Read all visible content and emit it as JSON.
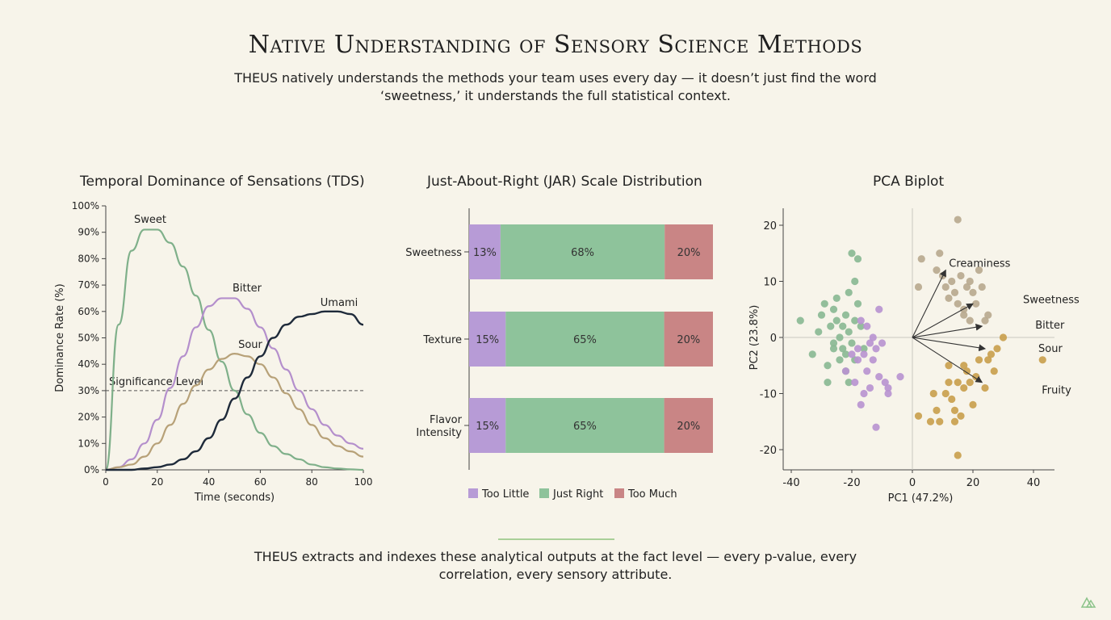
{
  "header": {
    "title": "Native Understanding of Sensory Science Methods",
    "subtitle": "THEUS natively understands the methods your team uses every day — it doesn’t just find the word ‘sweetness,’ it understands the full statistical context."
  },
  "footer": {
    "text": "THEUS extracts and indexes these analytical outputs at the fact level — every p-value, every correlation, every sensory attribute."
  },
  "colors": {
    "background": "#f7f4ea",
    "sweet": "#7fb08a",
    "bitter": "#b48fcc",
    "sour": "#b7a178",
    "umami": "#1e2a3a",
    "too_little": "#b79bd6",
    "just_right": "#8ec39b",
    "too_much": "#c98585",
    "accent": "#a9cf98"
  },
  "chart_data": [
    {
      "type": "line",
      "title": "Temporal Dominance of Sensations (TDS)",
      "xlabel": "Time (seconds)",
      "ylabel": "Dominance Rate (%)",
      "xlim": [
        0,
        100
      ],
      "ylim": [
        0,
        100
      ],
      "xticks": [
        "0",
        "20",
        "40",
        "60",
        "80",
        "100"
      ],
      "yticks": [
        "0%",
        "10%",
        "20%",
        "30%",
        "40%",
        "50%",
        "60%",
        "70%",
        "80%",
        "90%",
        "100%"
      ],
      "x": [
        0,
        5,
        10,
        15,
        20,
        25,
        30,
        35,
        40,
        45,
        50,
        55,
        60,
        65,
        70,
        75,
        80,
        85,
        90,
        95,
        100
      ],
      "series": [
        {
          "name": "Sweet",
          "color": "#7fb08a",
          "values": [
            0,
            55,
            83,
            91,
            91,
            86,
            77,
            66,
            53,
            41,
            30,
            21,
            14,
            9,
            6,
            4,
            2,
            1,
            0.5,
            0.2,
            0
          ]
        },
        {
          "name": "Bitter",
          "color": "#b48fcc",
          "values": [
            0,
            1,
            4,
            10,
            19,
            31,
            43,
            54,
            62,
            65,
            65,
            61,
            54,
            46,
            38,
            30,
            23,
            17,
            13,
            10,
            8
          ]
        },
        {
          "name": "Sour",
          "color": "#b7a178",
          "values": [
            0,
            1,
            2,
            5,
            10,
            17,
            25,
            32,
            38,
            42,
            44,
            43,
            40,
            35,
            29,
            23,
            17,
            12,
            9,
            7,
            5
          ]
        },
        {
          "name": "Umami",
          "color": "#1e2a3a",
          "values": [
            0,
            0,
            0,
            0.5,
            1,
            2,
            4,
            7,
            12,
            19,
            27,
            35,
            43,
            50,
            55,
            58,
            59,
            60,
            60,
            59,
            55
          ]
        }
      ],
      "reference_line": {
        "label": "Significance Level",
        "value": 30
      }
    },
    {
      "type": "bar",
      "subtype": "stacked-horizontal-100",
      "title": "Just-About-Right (JAR) Scale Distribution",
      "categories": [
        "Sweetness",
        "Texture",
        "Flavor Intensity"
      ],
      "series": [
        {
          "name": "Too Little",
          "color": "#b79bd6",
          "values": [
            13,
            15,
            15
          ],
          "labels": [
            "13%",
            "15%",
            "15%"
          ]
        },
        {
          "name": "Just Right",
          "color": "#8ec39b",
          "values": [
            68,
            65,
            65
          ],
          "labels": [
            "68%",
            "65%",
            "65%"
          ]
        },
        {
          "name": "Too Much",
          "color": "#c98585",
          "values": [
            20,
            20,
            20
          ],
          "labels": [
            "20%",
            "20%",
            "20%"
          ]
        }
      ],
      "legend": "bottom"
    },
    {
      "type": "scatter",
      "title": "PCA Biplot",
      "xlabel": "PC1 (47.2%)",
      "ylabel": "PC2 (23.8%)",
      "xlim": [
        -40,
        45
      ],
      "ylim": [
        -23,
        23
      ],
      "xticks": [
        "-40",
        "-20",
        "0",
        "20",
        "40"
      ],
      "yticks": [
        "20",
        "10",
        "0",
        "-10",
        "-20"
      ],
      "loadings": [
        {
          "name": "Creaminess",
          "x": 11,
          "y": 12
        },
        {
          "name": "Sweetness",
          "x": 20,
          "y": 6
        },
        {
          "name": "Bitter",
          "x": 23,
          "y": 2
        },
        {
          "name": "Sour",
          "x": 24,
          "y": -2
        },
        {
          "name": "Fruity",
          "x": 23,
          "y": -8
        }
      ],
      "groups": [
        {
          "color": "#8ab894",
          "points": [
            [
              -37,
              3
            ],
            [
              -33,
              -3
            ],
            [
              -31,
              1
            ],
            [
              -30,
              4
            ],
            [
              -29,
              6
            ],
            [
              -28,
              -5
            ],
            [
              -28,
              -8
            ],
            [
              -27,
              2
            ],
            [
              -26,
              5
            ],
            [
              -26,
              -1
            ],
            [
              -25,
              7
            ],
            [
              -25,
              3
            ],
            [
              -24,
              0
            ],
            [
              -24,
              -4
            ],
            [
              -23,
              2
            ],
            [
              -23,
              -2
            ],
            [
              -22,
              4
            ],
            [
              -22,
              -6
            ],
            [
              -21,
              1
            ],
            [
              -21,
              8
            ],
            [
              -20,
              -1
            ],
            [
              -20,
              15
            ],
            [
              -19,
              3
            ],
            [
              -19,
              -4
            ],
            [
              -18,
              14
            ],
            [
              -18,
              6
            ],
            [
              -17,
              2
            ],
            [
              -16,
              -2
            ],
            [
              -22,
              -3
            ],
            [
              -19,
              10
            ],
            [
              -21,
              -8
            ],
            [
              -26,
              -2
            ]
          ]
        },
        {
          "color": "#b994d0",
          "points": [
            [
              -22,
              -6
            ],
            [
              -20,
              -3
            ],
            [
              -19,
              -8
            ],
            [
              -18,
              -4
            ],
            [
              -17,
              3
            ],
            [
              -17,
              -12
            ],
            [
              -16,
              -3
            ],
            [
              -15,
              2
            ],
            [
              -15,
              -6
            ],
            [
              -14,
              -9
            ],
            [
              -13,
              0
            ],
            [
              -13,
              -4
            ],
            [
              -12,
              -2
            ],
            [
              -11,
              5
            ],
            [
              -11,
              -7
            ],
            [
              -10,
              -1
            ],
            [
              -9,
              -8
            ],
            [
              -8,
              -10
            ],
            [
              -8,
              -9
            ],
            [
              -12,
              -16
            ],
            [
              -16,
              -10
            ],
            [
              -4,
              -7
            ],
            [
              -18,
              -2
            ],
            [
              -14,
              -1
            ]
          ]
        },
        {
          "color": "#b9a98f",
          "points": [
            [
              15,
              21
            ],
            [
              3,
              14
            ],
            [
              2,
              9
            ],
            [
              8,
              12
            ],
            [
              9,
              15
            ],
            [
              10,
              11
            ],
            [
              11,
              9
            ],
            [
              12,
              7
            ],
            [
              13,
              10
            ],
            [
              14,
              8
            ],
            [
              15,
              6
            ],
            [
              16,
              11
            ],
            [
              17,
              5
            ],
            [
              18,
              9
            ],
            [
              19,
              10
            ],
            [
              20,
              8
            ],
            [
              21,
              6
            ],
            [
              22,
              12
            ],
            [
              23,
              9
            ],
            [
              25,
              4
            ],
            [
              24,
              3
            ],
            [
              19,
              3
            ],
            [
              17,
              4
            ]
          ]
        },
        {
          "color": "#c9a04e",
          "points": [
            [
              2,
              -14
            ],
            [
              6,
              -15
            ],
            [
              7,
              -10
            ],
            [
              8,
              -13
            ],
            [
              9,
              -15
            ],
            [
              11,
              -10
            ],
            [
              12,
              -8
            ],
            [
              13,
              -11
            ],
            [
              14,
              -13
            ],
            [
              15,
              -8
            ],
            [
              16,
              -14
            ],
            [
              17,
              -9
            ],
            [
              17,
              -5
            ],
            [
              18,
              -6
            ],
            [
              19,
              -8
            ],
            [
              20,
              -12
            ],
            [
              21,
              -7
            ],
            [
              22,
              -4
            ],
            [
              24,
              -9
            ],
            [
              25,
              -4
            ],
            [
              26,
              -3
            ],
            [
              27,
              -6
            ],
            [
              28,
              -2
            ],
            [
              30,
              0
            ],
            [
              43,
              -4
            ],
            [
              15,
              -21
            ],
            [
              14,
              -15
            ],
            [
              12,
              -5
            ]
          ]
        }
      ]
    }
  ],
  "chart_data_labels": {
    "tds": {
      "title": "Temporal Dominance of Sensations (TDS)",
      "xlabel": "Time (seconds)",
      "ylabel": "Dominance Rate (%)",
      "sig": "Significance Level"
    },
    "jar": {
      "title": "Just-About-Right (JAR) Scale Distribution",
      "cat1": "Sweetness",
      "cat2": "Texture",
      "cat3a": "Flavor",
      "cat3b": "Intensity",
      "legend1": "Too Little",
      "legend2": "Just Right",
      "legend3": "Too Much"
    },
    "pca": {
      "title": "PCA Biplot",
      "xlabel": "PC1 (47.2%)",
      "ylabel": "PC2 (23.8%)"
    }
  }
}
